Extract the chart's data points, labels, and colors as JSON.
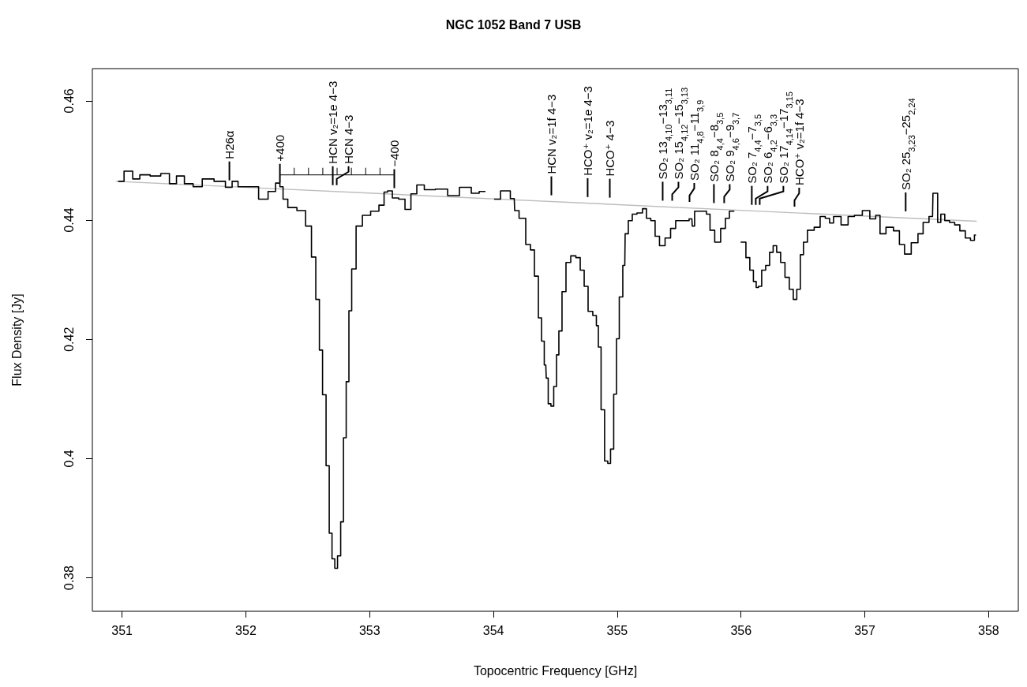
{
  "chart_data": {
    "type": "step",
    "title": "NGC 1052 Band 7 USB",
    "xlabel": "Topocentric Frequency [GHz]",
    "ylabel": "Flux Density [Jy]",
    "xlim": [
      350.76,
      358.24
    ],
    "ylim": [
      0.3744,
      0.4654
    ],
    "xticks": [
      351,
      352,
      353,
      354,
      355,
      356,
      357,
      358
    ],
    "yticks": [
      0.38,
      0.4,
      0.42,
      0.44,
      0.46
    ],
    "marker": "none",
    "series": [
      {
        "color": "#000000",
        "x": [
          350.968,
          351.064,
          351.108,
          351.179,
          351.274,
          351.351,
          351.414,
          351.465,
          351.542,
          351.606,
          351.689,
          351.797,
          351.873,
          351.905,
          351.969,
          352.071,
          352.135,
          352.224,
          352.256,
          352.294,
          352.307,
          352.371,
          352.454,
          352.511,
          352.549,
          352.581,
          352.607,
          352.632,
          352.664,
          352.683,
          352.709,
          352.728,
          352.753,
          352.779,
          352.798,
          352.823,
          352.842,
          352.868,
          352.913,
          352.97,
          353.046,
          353.104,
          353.129,
          353.161,
          353.206,
          353.263,
          353.308,
          353.359,
          353.403,
          353.48,
          353.582,
          353.678,
          353.773,
          353.869,
          353.901,
          353.97,
          354.041,
          354.073,
          354.105,
          354.168,
          354.175,
          354.239,
          354.283,
          354.315,
          354.347,
          354.379,
          354.398,
          354.423,
          354.43,
          354.455,
          354.474,
          354.5,
          354.519,
          354.538,
          354.57,
          354.602,
          354.647,
          354.685,
          354.717,
          354.749,
          354.78,
          354.825,
          354.838,
          354.857,
          354.882,
          354.914,
          354.933,
          354.959,
          354.984,
          355.004,
          355.029,
          355.061,
          355.067,
          355.112,
          355.131,
          355.188,
          355.22,
          355.252,
          355.29,
          355.322,
          355.361,
          355.412,
          355.45,
          355.494,
          355.558,
          355.603,
          355.609,
          355.641,
          355.705,
          355.737,
          355.762,
          355.813,
          355.858,
          355.89,
          355.922,
          355.97,
          356.024,
          356.055,
          356.087,
          356.113,
          356.132,
          356.151,
          356.183,
          356.215,
          356.247,
          356.272,
          356.304,
          356.336,
          356.374,
          356.406,
          356.438,
          356.463,
          356.495,
          356.514,
          356.559,
          356.623,
          356.655,
          356.706,
          356.725,
          356.77,
          356.846,
          356.884,
          356.948,
          357.012,
          357.069,
          357.107,
          357.139,
          357.203,
          357.26,
          357.299,
          357.343,
          357.407,
          357.452,
          357.49,
          357.547,
          357.554,
          357.579,
          357.598,
          357.63,
          357.662,
          357.707,
          357.745,
          357.79,
          357.834,
          357.873,
          357.898
        ],
        "values": [
          0.4465,
          0.4482,
          0.4469,
          0.4476,
          0.4474,
          0.4478,
          0.4461,
          0.4474,
          0.4461,
          0.4456,
          0.4469,
          0.4465,
          0.4455,
          0.4465,
          0.4456,
          0.4456,
          0.4435,
          0.4448,
          0.4462,
          0.4456,
          0.4435,
          0.4421,
          0.4416,
          0.439,
          0.4338,
          0.4267,
          0.4182,
          0.4107,
          0.3988,
          0.3875,
          0.3832,
          0.3816,
          0.3837,
          0.3894,
          0.4035,
          0.4129,
          0.4248,
          0.4318,
          0.439,
          0.4408,
          0.4415,
          0.4425,
          0.4447,
          0.4449,
          0.4437,
          0.4435,
          0.4418,
          0.4444,
          0.4459,
          0.4451,
          0.4452,
          0.4441,
          0.4455,
          0.4445,
          0.4448,
          null,
          0.4435,
          0.4449,
          0.4449,
          0.4436,
          0.4416,
          0.4403,
          0.4359,
          0.435,
          0.4306,
          0.4236,
          0.4197,
          0.4157,
          0.4135,
          0.4092,
          0.4088,
          0.4121,
          0.4174,
          0.4214,
          0.428,
          0.4329,
          0.434,
          0.4337,
          0.4316,
          0.4289,
          0.4247,
          0.424,
          0.4223,
          0.4187,
          0.4082,
          0.3996,
          0.3992,
          0.4016,
          0.4108,
          0.4201,
          0.4271,
          0.4324,
          0.4377,
          0.4399,
          0.441,
          0.4412,
          0.4419,
          0.4403,
          0.4399,
          0.4373,
          0.4357,
          0.437,
          0.4386,
          0.4399,
          0.4399,
          0.4402,
          0.439,
          0.4415,
          0.4415,
          0.441,
          0.4383,
          0.4363,
          0.4386,
          0.4403,
          0.4415,
          null,
          0.4363,
          0.4337,
          0.4316,
          0.4297,
          0.4287,
          0.4289,
          0.4316,
          0.4324,
          0.4346,
          0.4357,
          0.4346,
          0.4329,
          0.4304,
          0.4284,
          0.4267,
          0.4284,
          0.4342,
          0.4363,
          0.4383,
          0.4388,
          0.4406,
          0.4403,
          0.4395,
          0.4406,
          0.4392,
          0.4406,
          0.4408,
          0.4416,
          0.4402,
          0.4408,
          0.4377,
          0.4388,
          0.4382,
          0.4359,
          0.4343,
          0.4362,
          0.4377,
          0.4396,
          0.4406,
          0.4445,
          0.4445,
          0.4396,
          0.441,
          0.4399,
          0.4396,
          0.4392,
          0.4382,
          0.437,
          0.4366,
          0.4375
        ]
      },
      {
        "type": "line",
        "color": "#bdbdbd",
        "x": [
          350.949,
          357.904
        ],
        "values": [
          0.4465,
          0.4398
        ]
      }
    ],
    "annotations": [
      {
        "text": "+400",
        "x": 352.275,
        "y": 0.4452
      },
      {
        "text": "−400",
        "x": 353.199,
        "y": 0.4443
      },
      {
        "text": "H26α",
        "x": 351.867,
        "y": 0.4456
      },
      {
        "text": "HCN v₂=1e 4−3",
        "x": 352.702,
        "y": 0.4448
      },
      {
        "text": "HCN 4−3",
        "x": 352.734,
        "y": 0.4448
      },
      {
        "text": "HCN v₂=1f 4−3",
        "x": 354.468,
        "y": 0.4431
      },
      {
        "text": "HCO⁺ v₂=1e 4−3",
        "x": 354.761,
        "y": 0.4428
      },
      {
        "text": "HCO⁺ 4−3",
        "x": 354.94,
        "y": 0.4427
      },
      {
        "text": "SO₂ 13$_{4,10}$−13$_{3,11}$",
        "x": 355.367,
        "y": 0.4422
      },
      {
        "text": "SO₂ 15$_{4,12}$−15$_{3,13}$",
        "x": 355.444,
        "y": 0.4422
      },
      {
        "text": "SO₂ 11$_{4,8}$−11$_{3,9}$",
        "x": 355.584,
        "y": 0.442
      },
      {
        "text": "SO₂ 8$_{4,4}$−8$_{3,5}$",
        "x": 355.781,
        "y": 0.4418
      },
      {
        "text": "SO₂ 9$_{4,6}$−9$_{3,7}$",
        "x": 355.864,
        "y": 0.4418
      },
      {
        "text": "SO₂ 7$_{4,4}$−7$_{3,5}$",
        "x": 356.087,
        "y": 0.4415
      },
      {
        "text": "SO₂ 6$_{4,2}$−6$_{3,3}$",
        "x": 356.119,
        "y": 0.4415
      },
      {
        "text": "SO₂ 17$_{4,14}$−17$_{3,15}$",
        "x": 356.151,
        "y": 0.4415
      },
      {
        "text": "HCO⁺ v₂=1f 4−3",
        "x": 356.432,
        "y": 0.4412
      },
      {
        "text": "SO₂ 25$_{3,23}$−25$_{2,24}$",
        "x": 357.33,
        "y": 0.4404
      }
    ]
  }
}
